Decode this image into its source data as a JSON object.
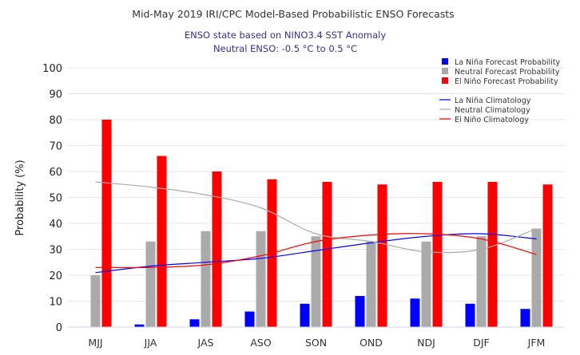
{
  "chart_data": {
    "type": "bar",
    "title": "Mid-May 2019 IRI/CPC Model-Based Probabilistic ENSO Forecasts",
    "subtitle_lines": [
      "ENSO state based on NINO3.4 SST Anomaly",
      "Neutral ENSO: -0.5 °C to 0.5 °C"
    ],
    "xlabel": "",
    "ylabel": "Probability (%)",
    "ylim": [
      0,
      100
    ],
    "yticks": [
      0,
      10,
      20,
      30,
      40,
      50,
      60,
      70,
      80,
      90,
      100
    ],
    "grid": true,
    "legend_position": "top-right",
    "categories": [
      "MJJ",
      "JJA",
      "JAS",
      "ASO",
      "SON",
      "OND",
      "NDJ",
      "DJF",
      "JFM"
    ],
    "series": [
      {
        "name": "La Niña Forecast Probability",
        "kind": "bar",
        "color": "#0000ff",
        "values": [
          0,
          1,
          3,
          6,
          9,
          12,
          11,
          9,
          7
        ]
      },
      {
        "name": "Neutral Forecast Probability",
        "kind": "bar",
        "color": "#aaaaaa",
        "values": [
          20,
          33,
          37,
          37,
          35,
          33,
          33,
          35,
          38
        ]
      },
      {
        "name": "El Niño Forecast Probability",
        "kind": "bar",
        "color": "#ff0000",
        "values": [
          80,
          66,
          60,
          57,
          56,
          55,
          56,
          56,
          55
        ]
      },
      {
        "name": "La Niña Climatology",
        "kind": "line",
        "color": "#0000ff",
        "values": [
          21,
          23.5,
          25,
          26.5,
          29.5,
          32.5,
          35,
          36,
          34
        ]
      },
      {
        "name": "Neutral Climatology",
        "kind": "line",
        "color": "#aaaaaa",
        "values": [
          56,
          54,
          51,
          46,
          36,
          33,
          29,
          30,
          38
        ]
      },
      {
        "name": "El Niño Climatology",
        "kind": "line",
        "color": "#ff0000",
        "values": [
          23,
          23,
          24,
          27.5,
          33,
          35.5,
          36,
          34,
          28
        ]
      }
    ]
  }
}
